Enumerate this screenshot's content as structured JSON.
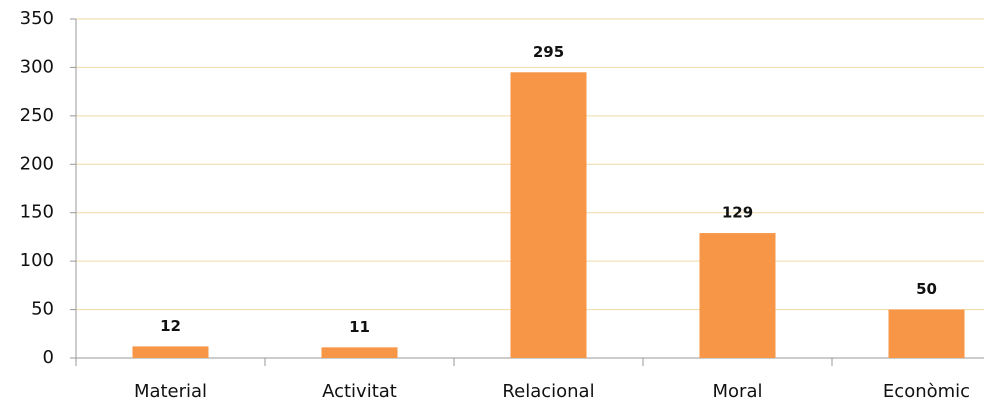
{
  "chart_data": {
    "type": "bar",
    "categories": [
      "Material",
      "Activitat",
      "Relacional",
      "Moral",
      "Econòmic"
    ],
    "values": [
      12,
      11,
      295,
      129,
      50
    ],
    "color": "#f79646",
    "ylim": [
      0,
      350
    ],
    "yticks": [
      0,
      50,
      100,
      150,
      200,
      250,
      300,
      350
    ],
    "grid": true
  }
}
